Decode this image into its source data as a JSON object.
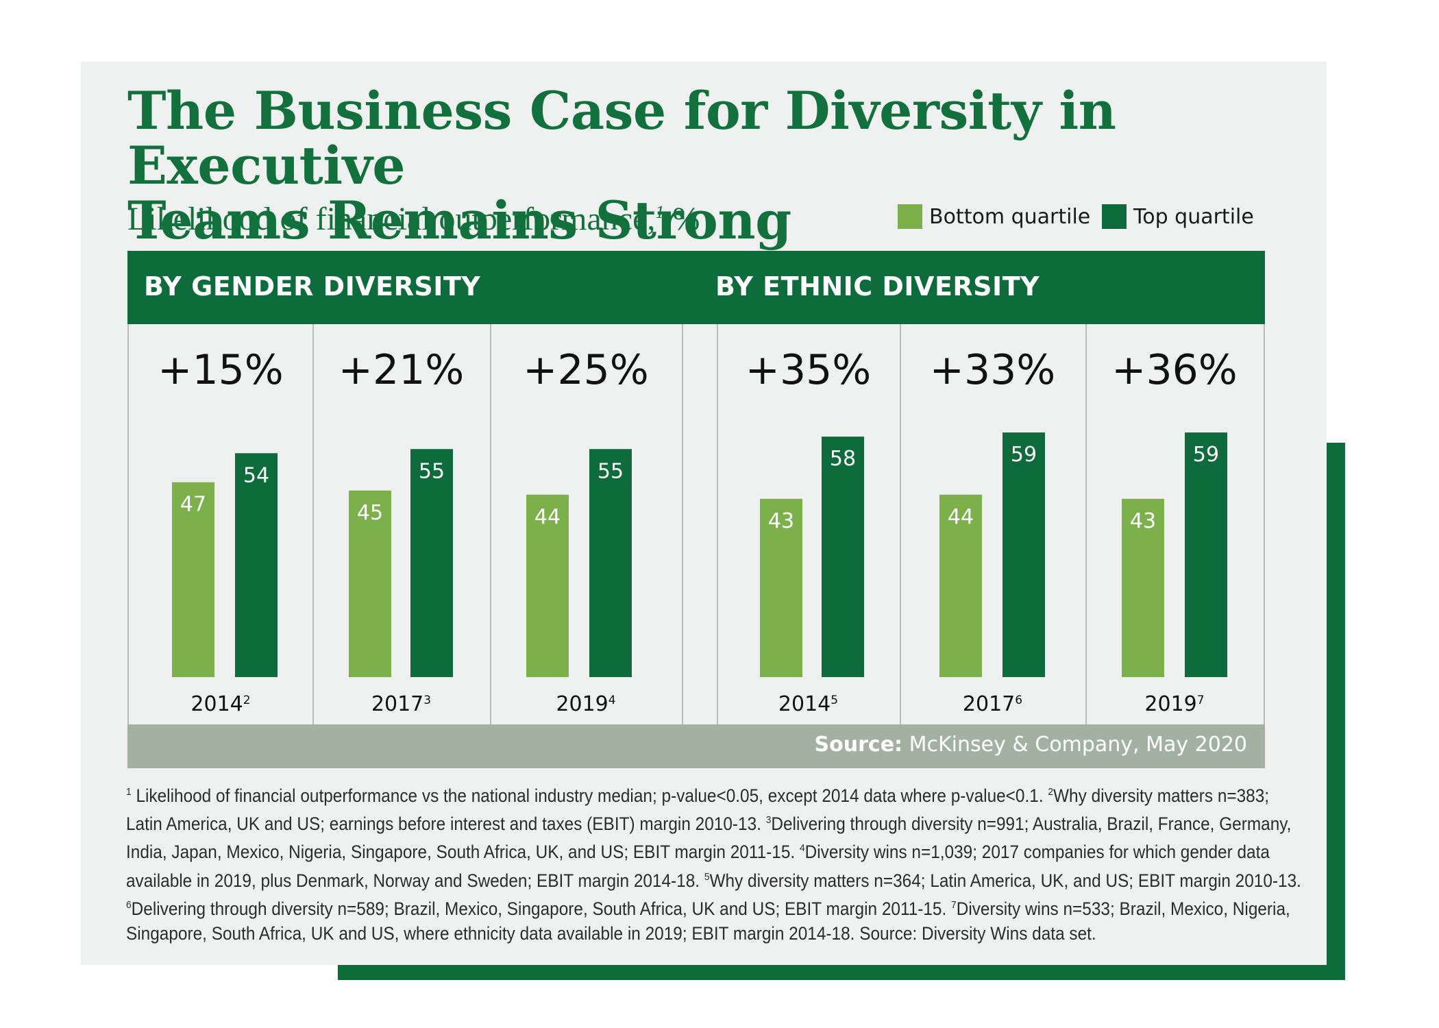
{
  "title_line1": "The Business Case for Diversity in Executive",
  "title_line2": "Teams Remains Strong",
  "subtitle": "Likelihood of financial outperformance,",
  "subtitle_sup": "1",
  "subtitle_unit": " %",
  "legend": [
    {
      "label": "Bottom quartile",
      "color": "#7cb04a"
    },
    {
      "label": "Top quartile",
      "color": "#0e6b3b"
    }
  ],
  "colors": {
    "brand_green": "#0e6b3b",
    "light_green": "#7cb04a",
    "source_bar": "#a2b1a2",
    "card_bg": "#eff1f0"
  },
  "groups": [
    "BY GENDER DIVERSITY",
    "BY ETHNIC DIVERSITY"
  ],
  "source": {
    "label": "Source:",
    "text": " McKinsey & Company, May 2020"
  },
  "chart_data": {
    "type": "bar",
    "series": [
      {
        "name": "Bottom quartile",
        "values": [
          47,
          45,
          44,
          43,
          44,
          43
        ]
      },
      {
        "name": "Top quartile",
        "values": [
          54,
          55,
          55,
          58,
          59,
          59
        ]
      }
    ],
    "panels": [
      {
        "group": "BY GENDER DIVERSITY",
        "year": "2014",
        "note": "2",
        "delta": "+15%",
        "bottom": 47,
        "top": 54
      },
      {
        "group": "BY GENDER DIVERSITY",
        "year": "2017",
        "note": "3",
        "delta": "+21%",
        "bottom": 45,
        "top": 55
      },
      {
        "group": "BY GENDER DIVERSITY",
        "year": "2019",
        "note": "4",
        "delta": "+25%",
        "bottom": 44,
        "top": 55
      },
      {
        "group": "BY ETHNIC DIVERSITY",
        "year": "2014",
        "note": "5",
        "delta": "+35%",
        "bottom": 43,
        "top": 58
      },
      {
        "group": "BY ETHNIC DIVERSITY",
        "year": "2017",
        "note": "6",
        "delta": "+33%",
        "bottom": 44,
        "top": 59
      },
      {
        "group": "BY ETHNIC DIVERSITY",
        "year": "2019",
        "note": "7",
        "delta": "+36%",
        "bottom": 43,
        "top": 59
      }
    ],
    "ylim": [
      0,
      59
    ]
  },
  "footnotes": [
    [
      {
        "t": "1"
      },
      {
        "s": " Likelihood of financial outperformance vs the national industry median; p-value<0.05, except 2014 data where p-value<0.1.  "
      },
      {
        "t": "2"
      },
      {
        "s": "Why diversity matters n=383;"
      }
    ],
    [
      {
        "s": "Latin America, UK and US; earnings before interest and taxes (EBIT) margin 2010-13. "
      },
      {
        "t": "3"
      },
      {
        "s": "Delivering through diversity n=991; Australia, Brazil, France, Germany,"
      }
    ],
    [
      {
        "s": "India, Japan, Mexico, Nigeria, Singapore, South Africa, UK, and US; EBIT margin 2011-15. "
      },
      {
        "t": "4"
      },
      {
        "s": "Diversity wins n=1,039; 2017 companies for which gender data"
      }
    ],
    [
      {
        "s": "available in 2019, plus Denmark, Norway and Sweden; EBIT margin 2014-18. "
      },
      {
        "t": "5"
      },
      {
        "s": "Why diversity matters n=364; Latin America, UK, and US; EBIT margin 2010-13."
      }
    ],
    [
      {
        "t": "6"
      },
      {
        "s": "Delivering through diversity n=589; Brazil, Mexico, Singapore, South Africa, UK and US; EBIT margin 2011-15. "
      },
      {
        "t": "7"
      },
      {
        "s": "Diversity wins n=533; Brazil, Mexico, Nigeria,"
      }
    ],
    [
      {
        "s": "Singapore, South Africa, UK and US, where ethnicity data available in 2019; EBIT margin 2014-18. Source: Diversity Wins data set."
      }
    ]
  ]
}
